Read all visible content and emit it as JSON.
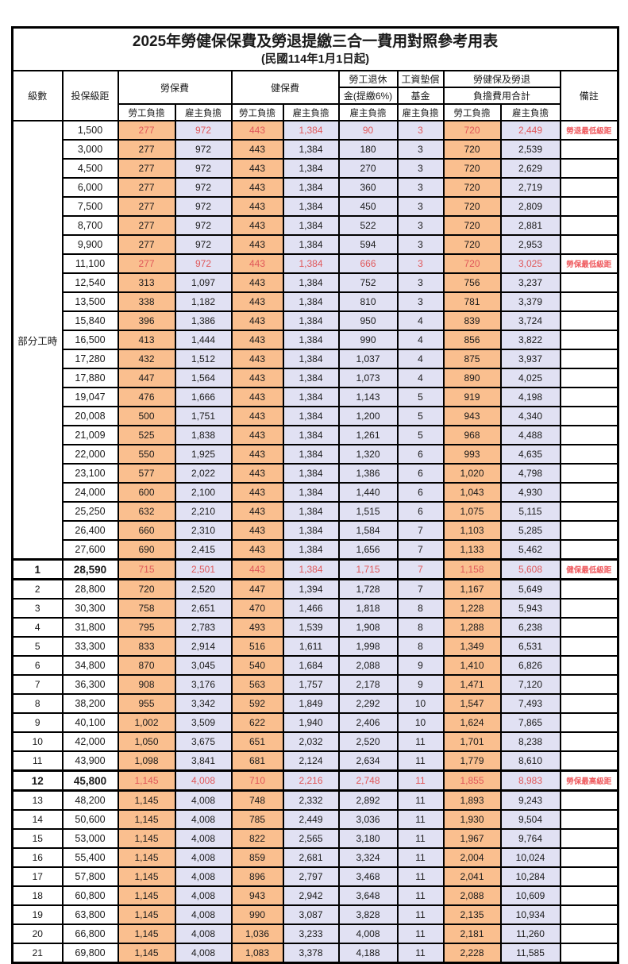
{
  "title": "2025年勞健保保費及勞退提繳三合一費用對照參考用表",
  "subtitle": "(民國114年1月1日起)",
  "colors": {
    "employee_col_bg": "#fabf8f",
    "employer_col_bg": "#e1e1f3",
    "highlight_text": "#e0585a",
    "border": "#000000"
  },
  "header": {
    "level": "級數",
    "bracket": "投保級距",
    "labor_group": "勞保費",
    "health_group": "健保費",
    "pension_line1": "勞工退休",
    "pension_line2": "金(提繳6%)",
    "wage_fund_line1": "工資墊償",
    "wage_fund_line2": "基金",
    "total_line1": "勞健保及勞退",
    "total_line2": "負擔費用合計",
    "note": "備註",
    "employee": "勞工負擔",
    "employer": "雇主負擔"
  },
  "part_time_label": "部分工時",
  "rows": [
    {
      "level": "",
      "bracket": "1,500",
      "values": [
        "277",
        "972",
        "443",
        "1,384",
        "90",
        "3",
        "720",
        "2,449"
      ],
      "note": "勞退最低級距",
      "red": true,
      "bold": false,
      "frame": false
    },
    {
      "level": "",
      "bracket": "3,000",
      "values": [
        "277",
        "972",
        "443",
        "1,384",
        "180",
        "3",
        "720",
        "2,539"
      ],
      "note": "",
      "red": false,
      "bold": false,
      "frame": false
    },
    {
      "level": "",
      "bracket": "4,500",
      "values": [
        "277",
        "972",
        "443",
        "1,384",
        "270",
        "3",
        "720",
        "2,629"
      ],
      "note": "",
      "red": false,
      "bold": false,
      "frame": false
    },
    {
      "level": "",
      "bracket": "6,000",
      "values": [
        "277",
        "972",
        "443",
        "1,384",
        "360",
        "3",
        "720",
        "2,719"
      ],
      "note": "",
      "red": false,
      "bold": false,
      "frame": false
    },
    {
      "level": "",
      "bracket": "7,500",
      "values": [
        "277",
        "972",
        "443",
        "1,384",
        "450",
        "3",
        "720",
        "2,809"
      ],
      "note": "",
      "red": false,
      "bold": false,
      "frame": false
    },
    {
      "level": "",
      "bracket": "8,700",
      "values": [
        "277",
        "972",
        "443",
        "1,384",
        "522",
        "3",
        "720",
        "2,881"
      ],
      "note": "",
      "red": false,
      "bold": false,
      "frame": false
    },
    {
      "level": "",
      "bracket": "9,900",
      "values": [
        "277",
        "972",
        "443",
        "1,384",
        "594",
        "3",
        "720",
        "2,953"
      ],
      "note": "",
      "red": false,
      "bold": false,
      "frame": false
    },
    {
      "level": "",
      "bracket": "11,100",
      "values": [
        "277",
        "972",
        "443",
        "1,384",
        "666",
        "3",
        "720",
        "3,025"
      ],
      "note": "勞保最低級距",
      "red": true,
      "bold": false,
      "frame": false
    },
    {
      "level": "",
      "bracket": "12,540",
      "values": [
        "313",
        "1,097",
        "443",
        "1,384",
        "752",
        "3",
        "756",
        "3,237"
      ],
      "note": "",
      "red": false,
      "bold": false,
      "frame": false
    },
    {
      "level": "",
      "bracket": "13,500",
      "values": [
        "338",
        "1,182",
        "443",
        "1,384",
        "810",
        "3",
        "781",
        "3,379"
      ],
      "note": "",
      "red": false,
      "bold": false,
      "frame": false
    },
    {
      "level": "",
      "bracket": "15,840",
      "values": [
        "396",
        "1,386",
        "443",
        "1,384",
        "950",
        "4",
        "839",
        "3,724"
      ],
      "note": "",
      "red": false,
      "bold": false,
      "frame": false
    },
    {
      "level": "",
      "bracket": "16,500",
      "values": [
        "413",
        "1,444",
        "443",
        "1,384",
        "990",
        "4",
        "856",
        "3,822"
      ],
      "note": "",
      "red": false,
      "bold": false,
      "frame": false
    },
    {
      "level": "",
      "bracket": "17,280",
      "values": [
        "432",
        "1,512",
        "443",
        "1,384",
        "1,037",
        "4",
        "875",
        "3,937"
      ],
      "note": "",
      "red": false,
      "bold": false,
      "frame": false
    },
    {
      "level": "",
      "bracket": "17,880",
      "values": [
        "447",
        "1,564",
        "443",
        "1,384",
        "1,073",
        "4",
        "890",
        "4,025"
      ],
      "note": "",
      "red": false,
      "bold": false,
      "frame": false
    },
    {
      "level": "",
      "bracket": "19,047",
      "values": [
        "476",
        "1,666",
        "443",
        "1,384",
        "1,143",
        "5",
        "919",
        "4,198"
      ],
      "note": "",
      "red": false,
      "bold": false,
      "frame": false
    },
    {
      "level": "",
      "bracket": "20,008",
      "values": [
        "500",
        "1,751",
        "443",
        "1,384",
        "1,200",
        "5",
        "943",
        "4,340"
      ],
      "note": "",
      "red": false,
      "bold": false,
      "frame": false
    },
    {
      "level": "",
      "bracket": "21,009",
      "values": [
        "525",
        "1,838",
        "443",
        "1,384",
        "1,261",
        "5",
        "968",
        "4,488"
      ],
      "note": "",
      "red": false,
      "bold": false,
      "frame": false
    },
    {
      "level": "",
      "bracket": "22,000",
      "values": [
        "550",
        "1,925",
        "443",
        "1,384",
        "1,320",
        "6",
        "993",
        "4,635"
      ],
      "note": "",
      "red": false,
      "bold": false,
      "frame": false
    },
    {
      "level": "",
      "bracket": "23,100",
      "values": [
        "577",
        "2,022",
        "443",
        "1,384",
        "1,386",
        "6",
        "1,020",
        "4,798"
      ],
      "note": "",
      "red": false,
      "bold": false,
      "frame": false
    },
    {
      "level": "",
      "bracket": "24,000",
      "values": [
        "600",
        "2,100",
        "443",
        "1,384",
        "1,440",
        "6",
        "1,043",
        "4,930"
      ],
      "note": "",
      "red": false,
      "bold": false,
      "frame": false
    },
    {
      "level": "",
      "bracket": "25,250",
      "values": [
        "632",
        "2,210",
        "443",
        "1,384",
        "1,515",
        "6",
        "1,075",
        "5,115"
      ],
      "note": "",
      "red": false,
      "bold": false,
      "frame": false
    },
    {
      "level": "",
      "bracket": "26,400",
      "values": [
        "660",
        "2,310",
        "443",
        "1,384",
        "1,584",
        "7",
        "1,103",
        "5,285"
      ],
      "note": "",
      "red": false,
      "bold": false,
      "frame": false
    },
    {
      "level": "",
      "bracket": "27,600",
      "values": [
        "690",
        "2,415",
        "443",
        "1,384",
        "1,656",
        "7",
        "1,133",
        "5,462"
      ],
      "note": "",
      "red": false,
      "bold": false,
      "frame": false
    },
    {
      "level": "1",
      "bracket": "28,590",
      "values": [
        "715",
        "2,501",
        "443",
        "1,384",
        "1,715",
        "7",
        "1,158",
        "5,608"
      ],
      "note": "健保最低級距",
      "red": true,
      "bold": true,
      "frame": true
    },
    {
      "level": "2",
      "bracket": "28,800",
      "values": [
        "720",
        "2,520",
        "447",
        "1,394",
        "1,728",
        "7",
        "1,167",
        "5,649"
      ],
      "note": "",
      "red": false,
      "bold": false,
      "frame": false
    },
    {
      "level": "3",
      "bracket": "30,300",
      "values": [
        "758",
        "2,651",
        "470",
        "1,466",
        "1,818",
        "8",
        "1,228",
        "5,943"
      ],
      "note": "",
      "red": false,
      "bold": false,
      "frame": false
    },
    {
      "level": "4",
      "bracket": "31,800",
      "values": [
        "795",
        "2,783",
        "493",
        "1,539",
        "1,908",
        "8",
        "1,288",
        "6,238"
      ],
      "note": "",
      "red": false,
      "bold": false,
      "frame": false
    },
    {
      "level": "5",
      "bracket": "33,300",
      "values": [
        "833",
        "2,914",
        "516",
        "1,611",
        "1,998",
        "8",
        "1,349",
        "6,531"
      ],
      "note": "",
      "red": false,
      "bold": false,
      "frame": false
    },
    {
      "level": "6",
      "bracket": "34,800",
      "values": [
        "870",
        "3,045",
        "540",
        "1,684",
        "2,088",
        "9",
        "1,410",
        "6,826"
      ],
      "note": "",
      "red": false,
      "bold": false,
      "frame": false
    },
    {
      "level": "7",
      "bracket": "36,300",
      "values": [
        "908",
        "3,176",
        "563",
        "1,757",
        "2,178",
        "9",
        "1,471",
        "7,120"
      ],
      "note": "",
      "red": false,
      "bold": false,
      "frame": false
    },
    {
      "level": "8",
      "bracket": "38,200",
      "values": [
        "955",
        "3,342",
        "592",
        "1,849",
        "2,292",
        "10",
        "1,547",
        "7,493"
      ],
      "note": "",
      "red": false,
      "bold": false,
      "frame": false
    },
    {
      "level": "9",
      "bracket": "40,100",
      "values": [
        "1,002",
        "3,509",
        "622",
        "1,940",
        "2,406",
        "10",
        "1,624",
        "7,865"
      ],
      "note": "",
      "red": false,
      "bold": false,
      "frame": false
    },
    {
      "level": "10",
      "bracket": "42,000",
      "values": [
        "1,050",
        "3,675",
        "651",
        "2,032",
        "2,520",
        "11",
        "1,701",
        "8,238"
      ],
      "note": "",
      "red": false,
      "bold": false,
      "frame": false
    },
    {
      "level": "11",
      "bracket": "43,900",
      "values": [
        "1,098",
        "3,841",
        "681",
        "2,124",
        "2,634",
        "11",
        "1,779",
        "8,610"
      ],
      "note": "",
      "red": false,
      "bold": false,
      "frame": false
    },
    {
      "level": "12",
      "bracket": "45,800",
      "values": [
        "1,145",
        "4,008",
        "710",
        "2,216",
        "2,748",
        "11",
        "1,855",
        "8,983"
      ],
      "note": "勞保最高級距",
      "red": true,
      "bold": true,
      "frame": true
    },
    {
      "level": "13",
      "bracket": "48,200",
      "values": [
        "1,145",
        "4,008",
        "748",
        "2,332",
        "2,892",
        "11",
        "1,893",
        "9,243"
      ],
      "note": "",
      "red": false,
      "bold": false,
      "frame": false
    },
    {
      "level": "14",
      "bracket": "50,600",
      "values": [
        "1,145",
        "4,008",
        "785",
        "2,449",
        "3,036",
        "11",
        "1,930",
        "9,504"
      ],
      "note": "",
      "red": false,
      "bold": false,
      "frame": false
    },
    {
      "level": "15",
      "bracket": "53,000",
      "values": [
        "1,145",
        "4,008",
        "822",
        "2,565",
        "3,180",
        "11",
        "1,967",
        "9,764"
      ],
      "note": "",
      "red": false,
      "bold": false,
      "frame": false
    },
    {
      "level": "16",
      "bracket": "55,400",
      "values": [
        "1,145",
        "4,008",
        "859",
        "2,681",
        "3,324",
        "11",
        "2,004",
        "10,024"
      ],
      "note": "",
      "red": false,
      "bold": false,
      "frame": false
    },
    {
      "level": "17",
      "bracket": "57,800",
      "values": [
        "1,145",
        "4,008",
        "896",
        "2,797",
        "3,468",
        "11",
        "2,041",
        "10,284"
      ],
      "note": "",
      "red": false,
      "bold": false,
      "frame": false
    },
    {
      "level": "18",
      "bracket": "60,800",
      "values": [
        "1,145",
        "4,008",
        "943",
        "2,942",
        "3,648",
        "11",
        "2,088",
        "10,609"
      ],
      "note": "",
      "red": false,
      "bold": false,
      "frame": false
    },
    {
      "level": "19",
      "bracket": "63,800",
      "values": [
        "1,145",
        "4,008",
        "990",
        "3,087",
        "3,828",
        "11",
        "2,135",
        "10,934"
      ],
      "note": "",
      "red": false,
      "bold": false,
      "frame": false
    },
    {
      "level": "20",
      "bracket": "66,800",
      "values": [
        "1,145",
        "4,008",
        "1,036",
        "3,233",
        "4,008",
        "11",
        "2,181",
        "11,260"
      ],
      "note": "",
      "red": false,
      "bold": false,
      "frame": false
    },
    {
      "level": "21",
      "bracket": "69,800",
      "values": [
        "1,145",
        "4,008",
        "1,083",
        "3,378",
        "4,188",
        "11",
        "2,228",
        "11,585"
      ],
      "note": "",
      "red": false,
      "bold": false,
      "frame": false
    }
  ]
}
